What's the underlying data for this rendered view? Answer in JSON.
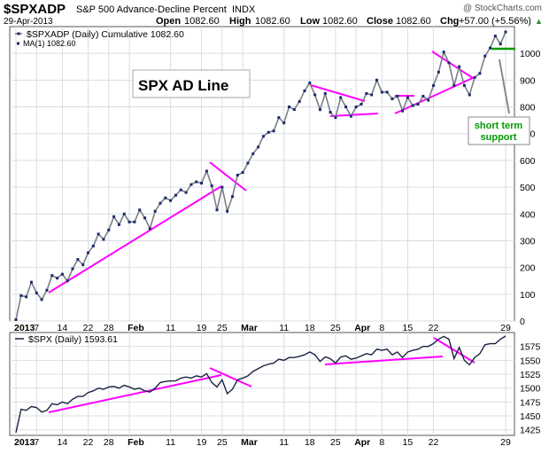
{
  "header": {
    "symbol": "$SPXADP",
    "description": "S&P 500 Advance-Decline Percent",
    "exchange": "INDX",
    "date": "29-Apr-2013",
    "watermark": "@ StockCharts.com",
    "open_label": "Open",
    "open_value": "1082.60",
    "high_label": "High",
    "high_value": "1082.60",
    "low_label": "Low",
    "low_value": "1082.60",
    "close_label": "Close",
    "close_value": "1082.60",
    "chg_label": "Chg",
    "chg_value": "+57.00 (+5.56%)",
    "chg_arrow": "▲"
  },
  "colors": {
    "line": "#7a7f88",
    "marker": "#1a2a6c",
    "spx_line": "#1a2240",
    "annotation": "#ff00ff",
    "support": "#009900",
    "grid": "#d9dde3",
    "frame": "#555555"
  },
  "chart_data": [
    {
      "type": "line",
      "panel": "top",
      "legend": [
        "$SPXADP (Daily) Cumulative 1082.60",
        "MA(1) 1082.60"
      ],
      "title_box": "SPX AD Line",
      "ylim": [
        0,
        1100
      ],
      "y_ticks": [
        0,
        100,
        200,
        300,
        400,
        500,
        600,
        700,
        800,
        900,
        1000
      ],
      "x_ticks": [
        "2013",
        "7",
        "14",
        "22",
        "28",
        "Feb",
        "11",
        "19",
        "25",
        "Mar",
        "11",
        "18",
        "25",
        "Apr",
        "8",
        "15",
        "22",
        "29"
      ],
      "grid": true,
      "marker": "square",
      "values": [
        5,
        95,
        90,
        145,
        105,
        80,
        115,
        170,
        160,
        175,
        150,
        195,
        230,
        210,
        255,
        280,
        325,
        305,
        340,
        390,
        360,
        400,
        370,
        370,
        415,
        385,
        345,
        410,
        440,
        460,
        450,
        470,
        490,
        480,
        510,
        520,
        515,
        560,
        505,
        415,
        500,
        410,
        465,
        545,
        555,
        590,
        625,
        650,
        690,
        705,
        710,
        760,
        740,
        800,
        790,
        820,
        860,
        890,
        845,
        790,
        850,
        780,
        760,
        835,
        800,
        765,
        800,
        810,
        850,
        845,
        900,
        855,
        855,
        830,
        840,
        785,
        835,
        805,
        810,
        840,
        825,
        880,
        930,
        1005,
        965,
        880,
        950,
        880,
        845,
        910,
        925,
        990,
        1020,
        1065,
        1035,
        1080
      ]
    },
    {
      "type": "line",
      "panel": "bottom",
      "legend": [
        "$SPX (Daily) 1593.61"
      ],
      "ylim": [
        1415,
        1600
      ],
      "y_ticks": [
        1425,
        1450,
        1475,
        1500,
        1525,
        1550,
        1575
      ],
      "x_ticks": [
        "2013",
        "7",
        "14",
        "22",
        "28",
        "Feb",
        "11",
        "19",
        "25",
        "Mar",
        "11",
        "18",
        "25",
        "Apr",
        "8",
        "15",
        "22",
        "29"
      ],
      "grid": true,
      "values": [
        1420,
        1462,
        1460,
        1467,
        1465,
        1457,
        1460,
        1472,
        1470,
        1475,
        1472,
        1480,
        1485,
        1485,
        1492,
        1495,
        1500,
        1498,
        1502,
        1503,
        1500,
        1505,
        1502,
        1498,
        1500,
        1495,
        1493,
        1500,
        1510,
        1512,
        1513,
        1513,
        1518,
        1520,
        1518,
        1522,
        1520,
        1526,
        1510,
        1502,
        1515,
        1490,
        1498,
        1515,
        1518,
        1522,
        1530,
        1535,
        1540,
        1543,
        1545,
        1552,
        1550,
        1555,
        1555,
        1557,
        1560,
        1565,
        1560,
        1548,
        1556,
        1553,
        1545,
        1556,
        1558,
        1552,
        1554,
        1558,
        1562,
        1560,
        1570,
        1568,
        1570,
        1560,
        1565,
        1555,
        1565,
        1568,
        1570,
        1575,
        1575,
        1580,
        1588,
        1593,
        1588,
        1553,
        1573,
        1550,
        1542,
        1555,
        1562,
        1578,
        1580,
        1580,
        1588,
        1593.61
      ]
    }
  ],
  "annotations": {
    "support_label_line1": "short term",
    "support_label_line2": "support"
  }
}
